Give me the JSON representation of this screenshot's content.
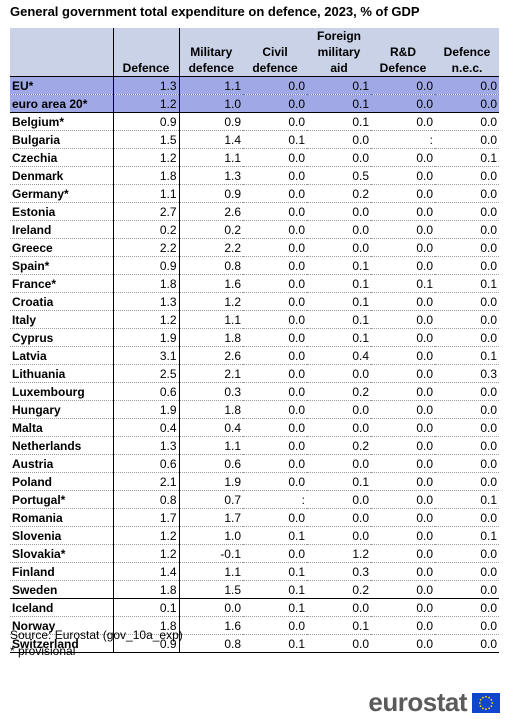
{
  "title": "General government total expenditure on defence, 2023, % of GDP",
  "source": "Source: Eurostat (gov_10a_exp)",
  "footnote": "* provisional",
  "logo": "eurostat",
  "colors": {
    "header_bg": "#cad2e7",
    "aggregate_bg": "#a0a8e6",
    "logo_blue": "#0e47cb",
    "logo_star": "#ffdd00"
  },
  "chart_data": {
    "type": "table",
    "title": "General government total expenditure on defence, 2023, % of GDP",
    "columns": [
      "Defence",
      "Military defence",
      "Civil defence",
      "Foreign military aid",
      "R&D Defence",
      "Defence n.e.c."
    ],
    "column_headers": [
      [
        "",
        "",
        "Defence"
      ],
      [
        "",
        "Military",
        "defence"
      ],
      [
        "",
        "Civil",
        "defence"
      ],
      [
        "Foreign",
        "military",
        "aid"
      ],
      [
        "",
        "R&D",
        "Defence"
      ],
      [
        "",
        "Defence",
        "n.e.c."
      ]
    ],
    "rows": [
      {
        "country": "EU*",
        "values": [
          "1.3",
          "1.1",
          "0.0",
          "0.1",
          "0.0",
          "0.0"
        ]
      },
      {
        "country": "euro area 20*",
        "values": [
          "1.2",
          "1.0",
          "0.0",
          "0.1",
          "0.0",
          "0.0"
        ]
      },
      {
        "country": "Belgium*",
        "values": [
          "0.9",
          "0.9",
          "0.0",
          "0.1",
          "0.0",
          "0.0"
        ]
      },
      {
        "country": "Bulgaria",
        "values": [
          "1.5",
          "1.4",
          "0.1",
          "0.0",
          ":",
          "0.0"
        ]
      },
      {
        "country": "Czechia",
        "values": [
          "1.2",
          "1.1",
          "0.0",
          "0.0",
          "0.0",
          "0.1"
        ]
      },
      {
        "country": "Denmark",
        "values": [
          "1.8",
          "1.3",
          "0.0",
          "0.5",
          "0.0",
          "0.0"
        ]
      },
      {
        "country": "Germany*",
        "values": [
          "1.1",
          "0.9",
          "0.0",
          "0.2",
          "0.0",
          "0.0"
        ]
      },
      {
        "country": "Estonia",
        "values": [
          "2.7",
          "2.6",
          "0.0",
          "0.0",
          "0.0",
          "0.0"
        ]
      },
      {
        "country": "Ireland",
        "values": [
          "0.2",
          "0.2",
          "0.0",
          "0.0",
          "0.0",
          "0.0"
        ]
      },
      {
        "country": "Greece",
        "values": [
          "2.2",
          "2.2",
          "0.0",
          "0.0",
          "0.0",
          "0.0"
        ]
      },
      {
        "country": "Spain*",
        "values": [
          "0.9",
          "0.8",
          "0.0",
          "0.1",
          "0.0",
          "0.0"
        ]
      },
      {
        "country": "France*",
        "values": [
          "1.8",
          "1.6",
          "0.0",
          "0.1",
          "0.1",
          "0.1"
        ]
      },
      {
        "country": "Croatia",
        "values": [
          "1.3",
          "1.2",
          "0.0",
          "0.1",
          "0.0",
          "0.0"
        ]
      },
      {
        "country": "Italy",
        "values": [
          "1.2",
          "1.1",
          "0.0",
          "0.1",
          "0.0",
          "0.0"
        ]
      },
      {
        "country": "Cyprus",
        "values": [
          "1.9",
          "1.8",
          "0.0",
          "0.1",
          "0.0",
          "0.0"
        ]
      },
      {
        "country": "Latvia",
        "values": [
          "3.1",
          "2.6",
          "0.0",
          "0.4",
          "0.0",
          "0.1"
        ]
      },
      {
        "country": "Lithuania",
        "values": [
          "2.5",
          "2.1",
          "0.0",
          "0.0",
          "0.0",
          "0.3"
        ]
      },
      {
        "country": "Luxembourg",
        "values": [
          "0.6",
          "0.3",
          "0.0",
          "0.2",
          "0.0",
          "0.0"
        ]
      },
      {
        "country": "Hungary",
        "values": [
          "1.9",
          "1.8",
          "0.0",
          "0.0",
          "0.0",
          "0.0"
        ]
      },
      {
        "country": "Malta",
        "values": [
          "0.4",
          "0.4",
          "0.0",
          "0.0",
          "0.0",
          "0.0"
        ]
      },
      {
        "country": "Netherlands",
        "values": [
          "1.3",
          "1.1",
          "0.0",
          "0.2",
          "0.0",
          "0.0"
        ]
      },
      {
        "country": "Austria",
        "values": [
          "0.6",
          "0.6",
          "0.0",
          "0.0",
          "0.0",
          "0.0"
        ]
      },
      {
        "country": "Poland",
        "values": [
          "2.1",
          "1.9",
          "0.0",
          "0.1",
          "0.0",
          "0.0"
        ]
      },
      {
        "country": "Portugal*",
        "values": [
          "0.8",
          "0.7",
          ":",
          "0.0",
          "0.0",
          "0.1"
        ]
      },
      {
        "country": "Romania",
        "values": [
          "1.7",
          "1.7",
          "0.0",
          "0.0",
          "0.0",
          "0.0"
        ]
      },
      {
        "country": "Slovenia",
        "values": [
          "1.2",
          "1.0",
          "0.1",
          "0.0",
          "0.0",
          "0.1"
        ]
      },
      {
        "country": "Slovakia*",
        "values": [
          "1.2",
          "-0.1",
          "0.0",
          "1.2",
          "0.0",
          "0.0"
        ]
      },
      {
        "country": "Finland",
        "values": [
          "1.4",
          "1.1",
          "0.1",
          "0.3",
          "0.0",
          "0.0"
        ]
      },
      {
        "country": "Sweden",
        "values": [
          "1.8",
          "1.5",
          "0.1",
          "0.2",
          "0.0",
          "0.0"
        ]
      },
      {
        "country": "Iceland",
        "values": [
          "0.1",
          "0.0",
          "0.1",
          "0.0",
          "0.0",
          "0.0"
        ]
      },
      {
        "country": "Norway",
        "values": [
          "1.8",
          "1.6",
          "0.0",
          "0.1",
          "0.0",
          "0.0"
        ]
      },
      {
        "country": "Switzerland",
        "values": [
          "0.9",
          "0.8",
          "0.1",
          "0.0",
          "0.0",
          "0.0"
        ]
      }
    ],
    "aggregate_rows": [
      0,
      1
    ],
    "group_end_rows": [
      28
    ]
  }
}
